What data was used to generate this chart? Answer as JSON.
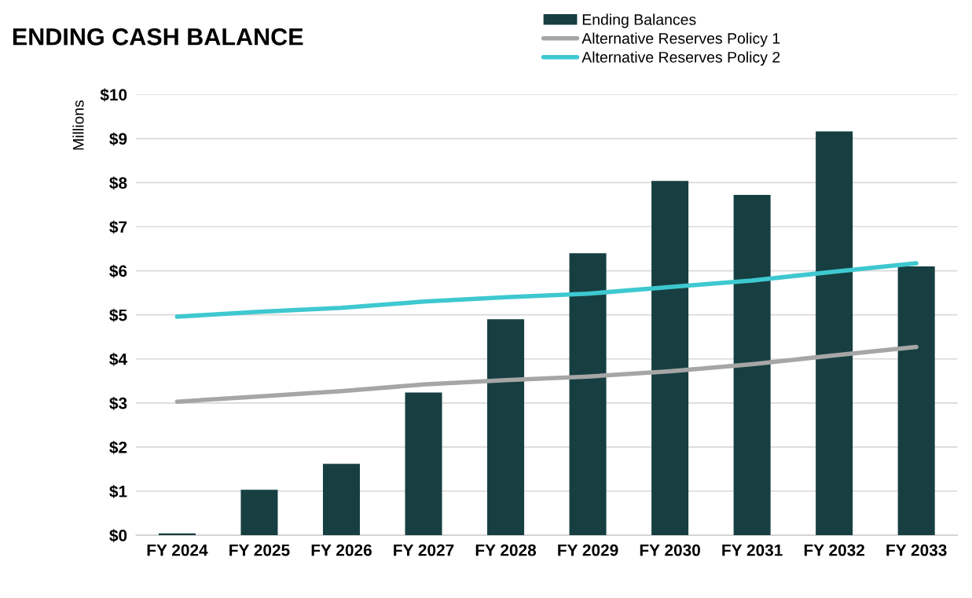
{
  "chart_data": {
    "type": "bar",
    "title": "ENDING CASH BALANCE",
    "ylabel": "Millions",
    "categories": [
      "FY 2024",
      "FY 2025",
      "FY 2026",
      "FY 2027",
      "FY 2028",
      "FY 2029",
      "FY 2030",
      "FY 2031",
      "FY 2032",
      "FY 2033"
    ],
    "series": [
      {
        "name": "Ending Balances",
        "color": "#173f42",
        "values": [
          0.04,
          1.03,
          1.62,
          3.24,
          4.9,
          6.4,
          8.04,
          7.72,
          9.16,
          6.1
        ]
      },
      {
        "name": "Alternative Reserves Policy 1",
        "type": "line",
        "color": "#a6a6a6",
        "values": [
          3.03,
          3.15,
          3.27,
          3.42,
          3.52,
          3.6,
          3.72,
          3.88,
          4.08,
          4.27
        ]
      },
      {
        "name": "Alternative Reserves Policy 2",
        "type": "line",
        "color": "#3ec8d0",
        "values": [
          4.96,
          5.07,
          5.16,
          5.3,
          5.4,
          5.48,
          5.63,
          5.78,
          5.98,
          6.17
        ]
      }
    ],
    "ylim": [
      0,
      10
    ],
    "yticks": [
      {
        "value": 0,
        "label": "$0"
      },
      {
        "value": 1,
        "label": "$1"
      },
      {
        "value": 2,
        "label": "$2"
      },
      {
        "value": 3,
        "label": "$3"
      },
      {
        "value": 4,
        "label": "$4"
      },
      {
        "value": 5,
        "label": "$5"
      },
      {
        "value": 6,
        "label": "$6"
      },
      {
        "value": 7,
        "label": "$7"
      },
      {
        "value": 8,
        "label": "$8"
      },
      {
        "value": 9,
        "label": "$9"
      },
      {
        "value": 10,
        "label": "$10"
      }
    ],
    "grid": "y",
    "legend": "top right"
  }
}
